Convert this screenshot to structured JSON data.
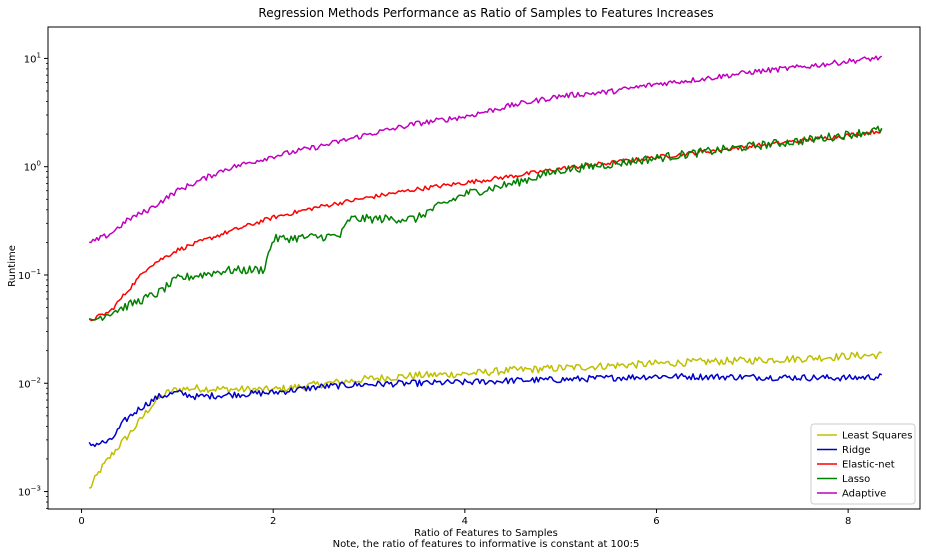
{
  "chart_data": {
    "type": "line",
    "title": "Regression Methods Performance as Ratio of Samples to Features Increases",
    "xlabel": "Ratio of Features to Samples",
    "xlabel_note": "Note, the ratio of features to informative is constant at 100:5",
    "ylabel": "Runtime",
    "xlim": [
      -0.35,
      8.75
    ],
    "ylim": [
      0.00069,
      19.5
    ],
    "y_scale": "log",
    "x_ticks": [
      0,
      2,
      4,
      6,
      8
    ],
    "y_ticks": [
      {
        "value": 0.001,
        "base": "10",
        "exp": "−3"
      },
      {
        "value": 0.01,
        "base": "10",
        "exp": "−2"
      },
      {
        "value": 0.1,
        "base": "10",
        "exp": "−1"
      },
      {
        "value": 1,
        "base": "10",
        "exp": "0"
      },
      {
        "value": 10,
        "base": "10",
        "exp": "1"
      }
    ],
    "grid": false,
    "legend_position": "bottom-right",
    "series": [
      {
        "name": "Least Squares",
        "color": "#bfbf00",
        "x": [
          0.08,
          0.2,
          0.3,
          0.4,
          0.5,
          0.6,
          0.7,
          0.8,
          0.9,
          1.0,
          1.2,
          1.5,
          2.0,
          2.5,
          3.0,
          3.5,
          4.0,
          4.5,
          5.0,
          5.5,
          6.0,
          6.5,
          7.0,
          7.5,
          8.0,
          8.35
        ],
        "y": [
          0.00105,
          0.0016,
          0.0021,
          0.0027,
          0.0034,
          0.0044,
          0.0058,
          0.0072,
          0.0082,
          0.0088,
          0.009,
          0.0088,
          0.0087,
          0.0098,
          0.011,
          0.0118,
          0.0122,
          0.0132,
          0.0138,
          0.0145,
          0.0152,
          0.0158,
          0.0163,
          0.0169,
          0.0178,
          0.0183
        ]
      },
      {
        "name": "Ridge",
        "color": "#0000cc",
        "x": [
          0.08,
          0.3,
          0.45,
          0.6,
          0.8,
          1.0,
          1.2,
          1.5,
          2.0,
          2.5,
          3.0,
          3.5,
          4.0,
          4.5,
          5.0,
          5.5,
          6.0,
          6.5,
          7.0,
          7.5,
          8.0,
          8.35
        ],
        "y": [
          0.0027,
          0.0029,
          0.0045,
          0.0058,
          0.0075,
          0.0082,
          0.0075,
          0.0078,
          0.0082,
          0.0093,
          0.0098,
          0.01,
          0.0102,
          0.0106,
          0.0108,
          0.0112,
          0.0116,
          0.0115,
          0.0114,
          0.0113,
          0.0112,
          0.0115
        ]
      },
      {
        "name": "Elastic-net",
        "color": "#ff0000",
        "x": [
          0.08,
          0.3,
          0.5,
          0.7,
          1.0,
          1.5,
          2.0,
          2.5,
          3.0,
          3.5,
          4.0,
          4.5,
          5.0,
          5.5,
          6.0,
          6.5,
          7.0,
          7.5,
          8.0,
          8.35
        ],
        "y": [
          0.038,
          0.046,
          0.075,
          0.12,
          0.17,
          0.245,
          0.34,
          0.43,
          0.52,
          0.62,
          0.71,
          0.82,
          0.96,
          1.08,
          1.22,
          1.38,
          1.55,
          1.73,
          1.95,
          2.15
        ]
      },
      {
        "name": "Lasso",
        "color": "#008000",
        "x": [
          0.08,
          0.3,
          0.5,
          0.8,
          1.0,
          1.5,
          1.9,
          2.0,
          2.7,
          2.8,
          3.5,
          3.6,
          4.0,
          4.5,
          5.0,
          5.5,
          6.0,
          6.5,
          7.0,
          7.5,
          8.0,
          8.35
        ],
        "y": [
          0.037,
          0.045,
          0.053,
          0.068,
          0.092,
          0.11,
          0.112,
          0.215,
          0.23,
          0.33,
          0.33,
          0.38,
          0.56,
          0.7,
          0.93,
          1.05,
          1.2,
          1.37,
          1.55,
          1.73,
          1.98,
          2.2
        ]
      },
      {
        "name": "Adaptive",
        "color": "#bf00bf",
        "x": [
          0.08,
          0.3,
          0.5,
          0.7,
          1.0,
          1.5,
          2.0,
          2.5,
          3.0,
          3.5,
          4.0,
          4.5,
          5.0,
          5.5,
          6.0,
          6.5,
          7.0,
          7.5,
          8.0,
          8.35
        ],
        "y": [
          0.195,
          0.24,
          0.33,
          0.4,
          0.6,
          0.95,
          1.25,
          1.55,
          2.0,
          2.5,
          2.9,
          3.7,
          4.5,
          4.9,
          5.8,
          6.5,
          7.5,
          8.3,
          9.4,
          10.2
        ]
      }
    ]
  }
}
